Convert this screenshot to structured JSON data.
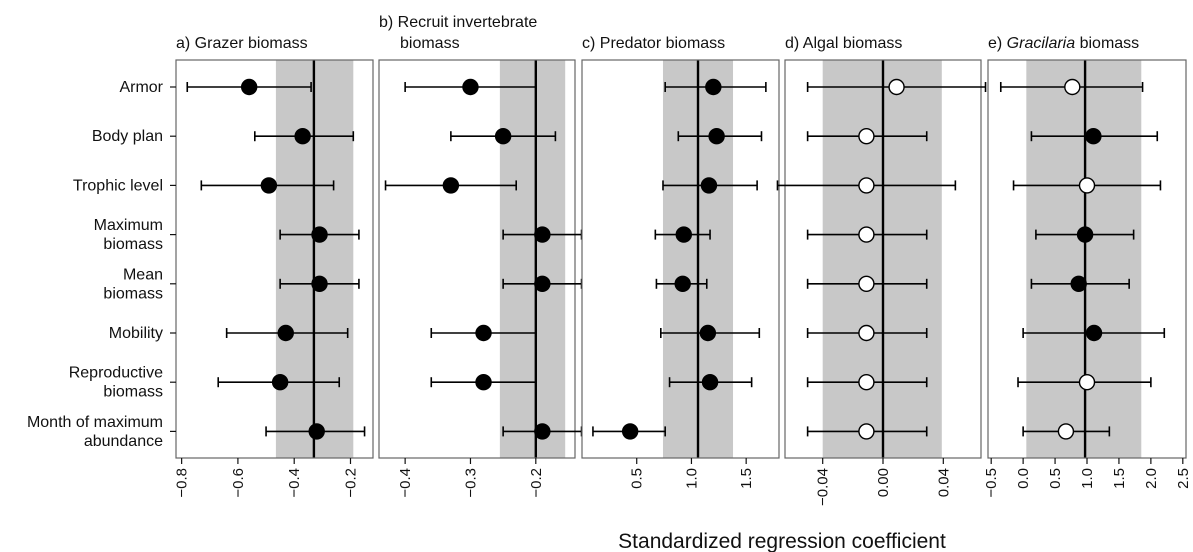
{
  "figure": {
    "xlabel": "Standardized regression coefficient",
    "row_labels": [
      [
        "Armor"
      ],
      [
        "Body plan"
      ],
      [
        "Trophic level"
      ],
      [
        "Maximum",
        "biomass"
      ],
      [
        "Mean",
        "biomass"
      ],
      [
        "Mobility"
      ],
      [
        "Reproductive",
        "biomass"
      ],
      [
        "Month of maximum",
        "abundance"
      ]
    ]
  },
  "chart_data": [
    {
      "type": "forest",
      "title_lines": [
        [
          {
            "t": "a) Grazer biomass"
          }
        ]
      ],
      "xlim": [
        -0.82,
        -0.12
      ],
      "xticks": [
        -0.8,
        -0.6,
        -0.4,
        -0.2
      ],
      "tick_labels": [
        "−0.8",
        "−0.6",
        "−0.4",
        "−0.2"
      ],
      "shaded_interval": [
        -0.465,
        -0.19
      ],
      "reference_line": -0.33,
      "marker_fill": "filled",
      "points": [
        {
          "label": "Armor",
          "estimate": -0.56,
          "low": -0.78,
          "high": -0.34
        },
        {
          "label": "Body plan",
          "estimate": -0.37,
          "low": -0.54,
          "high": -0.19
        },
        {
          "label": "Trophic level",
          "estimate": -0.49,
          "low": -0.73,
          "high": -0.26
        },
        {
          "label": "Maximum biomass",
          "estimate": -0.31,
          "low": -0.45,
          "high": -0.17
        },
        {
          "label": "Mean biomass",
          "estimate": -0.31,
          "low": -0.45,
          "high": -0.17
        },
        {
          "label": "Mobility",
          "estimate": -0.43,
          "low": -0.64,
          "high": -0.21
        },
        {
          "label": "Reproductive biomass",
          "estimate": -0.45,
          "low": -0.67,
          "high": -0.24
        },
        {
          "label": "Month of maximum abundance",
          "estimate": -0.32,
          "low": -0.5,
          "high": -0.15
        }
      ]
    },
    {
      "type": "forest",
      "title_lines": [
        [
          {
            "t": "b) Recruit invertebrate"
          }
        ],
        [
          {
            "t": "biomass"
          }
        ]
      ],
      "xlim": [
        -0.44,
        -0.14
      ],
      "xticks": [
        -0.4,
        -0.3,
        -0.2
      ],
      "tick_labels": [
        "−0.4",
        "−0.3",
        "−0.2"
      ],
      "shaded_interval": [
        -0.255,
        -0.155
      ],
      "reference_line": -0.2,
      "marker_fill": "filled",
      "points": [
        {
          "label": "Armor",
          "estimate": -0.3,
          "low": -0.4,
          "high": -0.2
        },
        {
          "label": "Body plan",
          "estimate": -0.25,
          "low": -0.33,
          "high": -0.17
        },
        {
          "label": "Trophic level",
          "estimate": -0.33,
          "low": -0.43,
          "high": -0.23
        },
        {
          "label": "Maximum biomass",
          "estimate": -0.19,
          "low": -0.25,
          "high": -0.13
        },
        {
          "label": "Mean biomass",
          "estimate": -0.19,
          "low": -0.25,
          "high": -0.13
        },
        {
          "label": "Mobility",
          "estimate": -0.28,
          "low": -0.36,
          "high": -0.2
        },
        {
          "label": "Reproductive biomass",
          "estimate": -0.28,
          "low": -0.36,
          "high": -0.2
        },
        {
          "label": "Month of maximum abundance",
          "estimate": -0.19,
          "low": -0.25,
          "high": -0.13
        }
      ]
    },
    {
      "type": "forest",
      "title_lines": [
        [
          {
            "t": "c) Predator biomass"
          }
        ]
      ],
      "xlim": [
        0.0,
        1.8
      ],
      "xticks": [
        0.5,
        1.0,
        1.5
      ],
      "tick_labels": [
        "0.5",
        "1.0",
        "1.5"
      ],
      "shaded_interval": [
        0.74,
        1.38
      ],
      "reference_line": 1.06,
      "marker_fill": "filled",
      "points": [
        {
          "label": "Armor",
          "estimate": 1.2,
          "low": 0.76,
          "high": 1.68
        },
        {
          "label": "Body plan",
          "estimate": 1.23,
          "low": 0.88,
          "high": 1.64
        },
        {
          "label": "Trophic level",
          "estimate": 1.16,
          "low": 0.74,
          "high": 1.6
        },
        {
          "label": "Maximum biomass",
          "estimate": 0.93,
          "low": 0.67,
          "high": 1.17
        },
        {
          "label": "Mean biomass",
          "estimate": 0.92,
          "low": 0.68,
          "high": 1.14
        },
        {
          "label": "Mobility",
          "estimate": 1.15,
          "low": 0.72,
          "high": 1.62
        },
        {
          "label": "Reproductive biomass",
          "estimate": 1.17,
          "low": 0.8,
          "high": 1.55
        },
        {
          "label": "Month of maximum abundance",
          "estimate": 0.44,
          "low": 0.1,
          "high": 0.76
        }
      ]
    },
    {
      "type": "forest",
      "title_lines": [
        [
          {
            "t": "d) Algal biomass"
          }
        ]
      ],
      "xlim": [
        -0.065,
        0.065
      ],
      "xticks": [
        -0.04,
        0.0,
        0.04
      ],
      "tick_labels": [
        "−0.04",
        "0.00",
        "0.04"
      ],
      "shaded_interval": [
        -0.04,
        0.039
      ],
      "reference_line": 0.0,
      "marker_fill": "open",
      "points": [
        {
          "label": "Armor",
          "estimate": 0.009,
          "low": -0.05,
          "high": 0.068,
          "fill": "open"
        },
        {
          "label": "Body plan",
          "estimate": -0.011,
          "low": -0.05,
          "high": 0.029,
          "fill": "open"
        },
        {
          "label": "Trophic level",
          "estimate": -0.011,
          "low": -0.07,
          "high": 0.048,
          "fill": "open"
        },
        {
          "label": "Maximum biomass",
          "estimate": -0.011,
          "low": -0.05,
          "high": 0.029,
          "fill": "open"
        },
        {
          "label": "Mean biomass",
          "estimate": -0.011,
          "low": -0.05,
          "high": 0.029,
          "fill": "open"
        },
        {
          "label": "Mobility",
          "estimate": -0.011,
          "low": -0.05,
          "high": 0.029,
          "fill": "open"
        },
        {
          "label": "Reproductive biomass",
          "estimate": -0.011,
          "low": -0.05,
          "high": 0.029,
          "fill": "open"
        },
        {
          "label": "Month of maximum abundance",
          "estimate": -0.011,
          "low": -0.05,
          "high": 0.029,
          "fill": "open"
        }
      ]
    },
    {
      "type": "forest",
      "title_lines": [
        [
          {
            "t": "e) "
          },
          {
            "t": "Gracilaria",
            "italic": true
          },
          {
            "t": " biomass"
          }
        ]
      ],
      "xlim": [
        -0.55,
        2.55
      ],
      "xticks": [
        -0.5,
        0.0,
        0.5,
        1.0,
        1.5,
        2.0,
        2.5
      ],
      "tick_labels": [
        "−0.5",
        "0.0",
        "0.5",
        "1.0",
        "1.5",
        "2.0",
        "2.5"
      ],
      "shaded_interval": [
        0.05,
        1.85
      ],
      "reference_line": 0.97,
      "marker_fill": "mixed",
      "points": [
        {
          "label": "Armor",
          "estimate": 0.77,
          "low": -0.35,
          "high": 1.87,
          "fill": "open"
        },
        {
          "label": "Body plan",
          "estimate": 1.1,
          "low": 0.13,
          "high": 2.1,
          "fill": "filled"
        },
        {
          "label": "Trophic level",
          "estimate": 1.0,
          "low": -0.15,
          "high": 2.15,
          "fill": "open"
        },
        {
          "label": "Maximum biomass",
          "estimate": 0.97,
          "low": 0.2,
          "high": 1.73,
          "fill": "filled"
        },
        {
          "label": "Mean biomass",
          "estimate": 0.87,
          "low": 0.13,
          "high": 1.66,
          "fill": "filled"
        },
        {
          "label": "Mobility",
          "estimate": 1.11,
          "low": 0.0,
          "high": 2.21,
          "fill": "filled"
        },
        {
          "label": "Reproductive biomass",
          "estimate": 1.0,
          "low": -0.08,
          "high": 2.0,
          "fill": "open"
        },
        {
          "label": "Month of maximum abundance",
          "estimate": 0.67,
          "low": 0.0,
          "high": 1.35,
          "fill": "open"
        }
      ]
    }
  ]
}
